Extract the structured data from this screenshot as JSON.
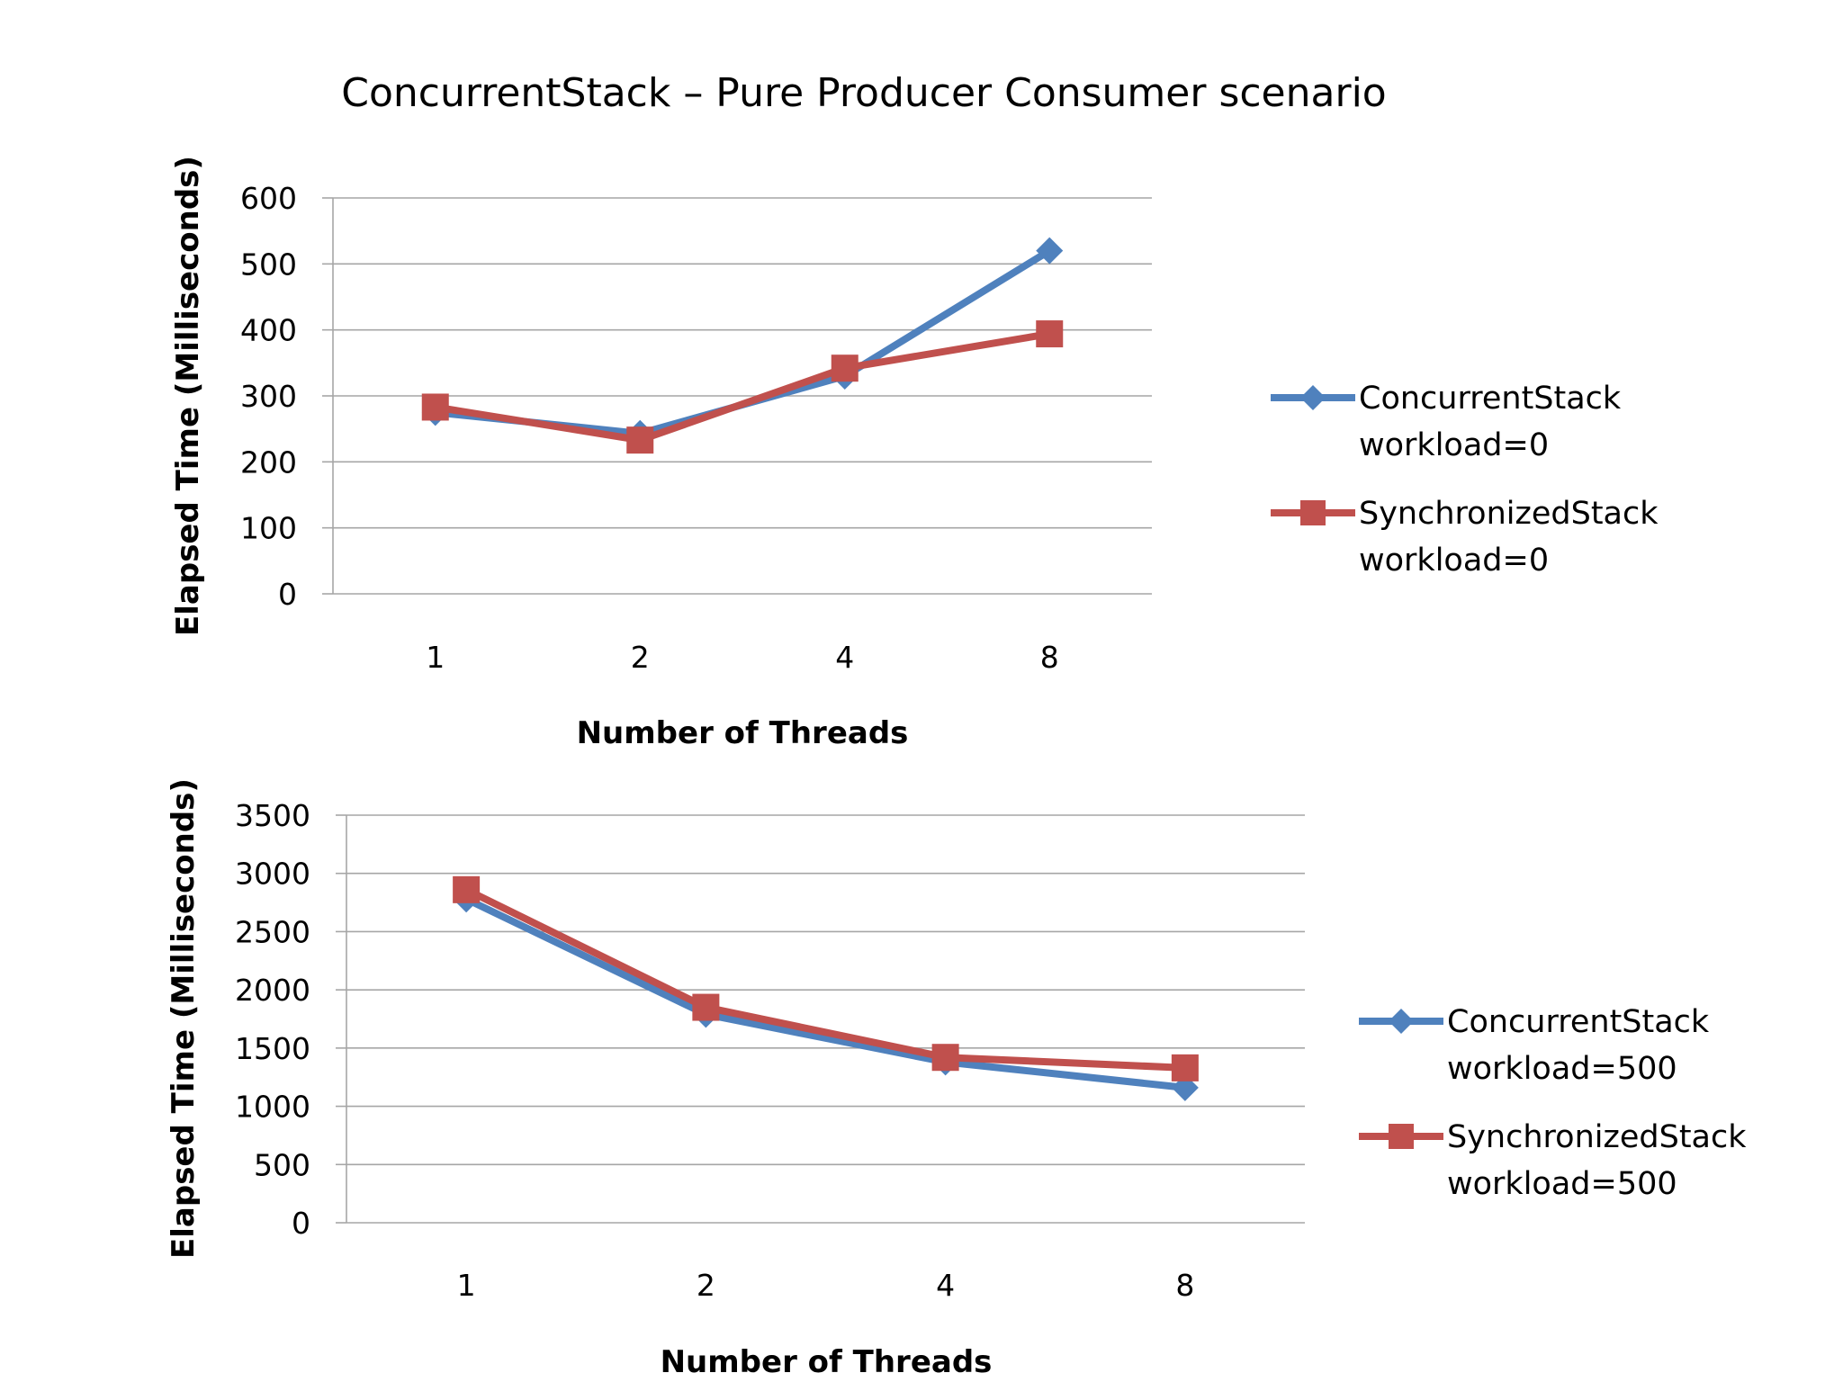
{
  "title": "ConcurrentStack – Pure Producer Consumer scenario",
  "colors": {
    "series_blue": "#4f81bd",
    "series_red": "#c0504d",
    "grid": "#a6a6a6"
  },
  "chart_data": [
    {
      "type": "line",
      "categories": [
        "1",
        "2",
        "4",
        "8"
      ],
      "xlabel": "Number of Threads",
      "ylabel": "Elapsed Time (Milliseconds)",
      "ylim": [
        0,
        600
      ],
      "yticks": [
        "0",
        "100",
        "200",
        "300",
        "400",
        "500",
        "600"
      ],
      "grid": true,
      "legend_position": "right",
      "series": [
        {
          "name": "ConcurrentStack workload=0",
          "legend_lines": [
            "ConcurrentStack",
            "workload=0"
          ],
          "values": [
            275,
            243,
            330,
            520
          ],
          "marker": "diamond",
          "color": "#4f81bd"
        },
        {
          "name": "SynchronizedStack workload=0",
          "legend_lines": [
            "SynchronizedStack",
            "workload=0"
          ],
          "values": [
            283,
            233,
            342,
            394
          ],
          "marker": "square",
          "color": "#c0504d"
        }
      ]
    },
    {
      "type": "line",
      "categories": [
        "1",
        "2",
        "4",
        "8"
      ],
      "xlabel": "Number of Threads",
      "ylabel": "Elapsed Time (Milliseconds)",
      "ylim": [
        0,
        3500
      ],
      "yticks": [
        "0",
        "500",
        "1000",
        "1500",
        "2000",
        "2500",
        "3000",
        "3500"
      ],
      "grid": true,
      "legend_position": "right",
      "series": [
        {
          "name": "ConcurrentStack workload=500",
          "legend_lines": [
            "ConcurrentStack",
            "workload=500"
          ],
          "values": [
            2780,
            1790,
            1380,
            1160
          ],
          "marker": "diamond",
          "color": "#4f81bd"
        },
        {
          "name": "SynchronizedStack workload=500",
          "legend_lines": [
            "SynchronizedStack",
            "workload=500"
          ],
          "values": [
            2860,
            1850,
            1420,
            1330
          ],
          "marker": "square",
          "color": "#c0504d"
        }
      ]
    }
  ]
}
